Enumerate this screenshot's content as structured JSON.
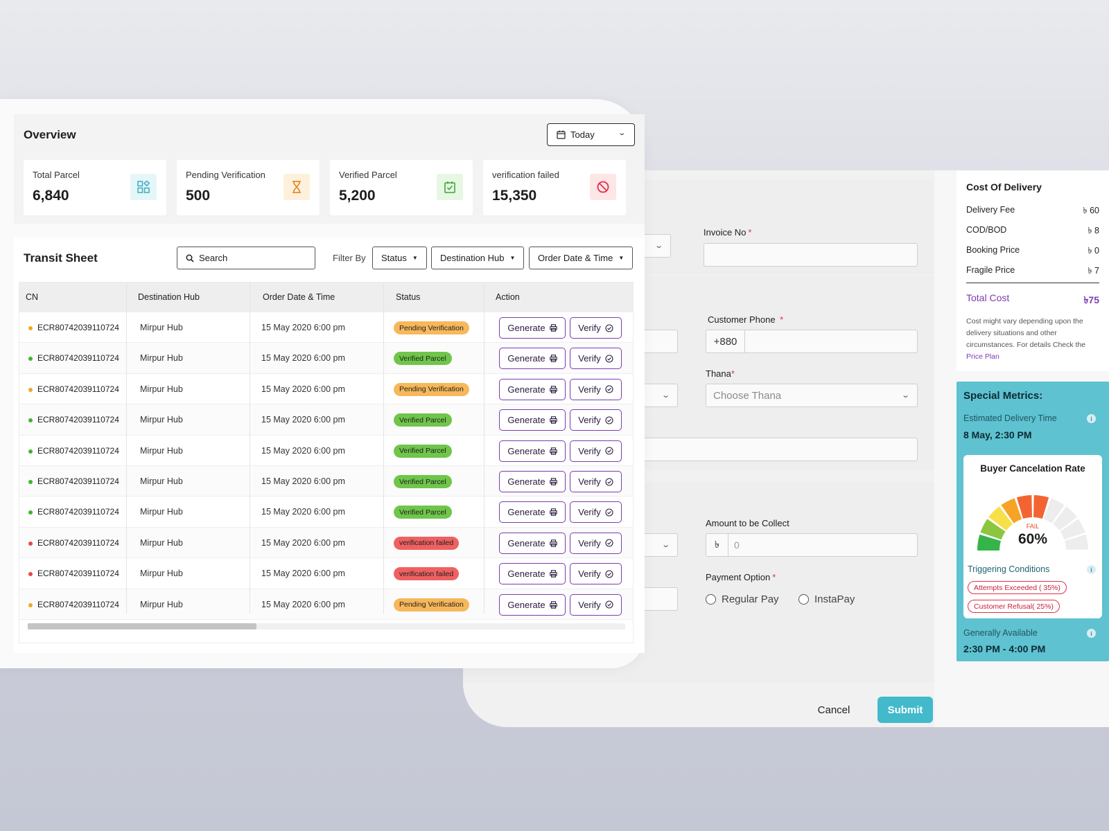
{
  "overview": {
    "title": "Overview",
    "date_filter": "Today",
    "stats": [
      {
        "label": "Total Parcel",
        "value": "6,840",
        "icon": "grid-shapes-icon",
        "color": "#3aaec0",
        "bg": "#e4f6f8"
      },
      {
        "label": "Pending Verification",
        "value": "500",
        "icon": "hourglass-icon",
        "color": "#e5831e",
        "bg": "#fdf1dd"
      },
      {
        "label": "Verified Parcel",
        "value": "5,200",
        "icon": "calendar-check-icon",
        "color": "#3fa53a",
        "bg": "#e7f7e3"
      },
      {
        "label": "verification failed",
        "value": "15,350",
        "icon": "ban-icon",
        "color": "#e0304a",
        "bg": "#fde6e6"
      }
    ]
  },
  "transit": {
    "title": "Transit Sheet",
    "search_placeholder": "Search",
    "filter_label": "Filter By",
    "filters": [
      "Status",
      "Destination Hub",
      "Order Date & Time"
    ],
    "columns": [
      "CN",
      "Destination Hub",
      "Order Date & Time",
      "Status",
      "Action"
    ],
    "generate_label": "Generate",
    "verify_label": "Verify",
    "rows": [
      {
        "cn": "ECR80742039110724",
        "hub": "Mirpur Hub",
        "date": "15 May 2020 6:00 pm",
        "status": "Pending Verification",
        "kind": "pending"
      },
      {
        "cn": "ECR80742039110724",
        "hub": "Mirpur Hub",
        "date": "15 May 2020 6:00 pm",
        "status": "Verified Parcel",
        "kind": "verified"
      },
      {
        "cn": "ECR80742039110724",
        "hub": "Mirpur Hub",
        "date": "15 May 2020 6:00 pm",
        "status": "Pending Verification",
        "kind": "pending"
      },
      {
        "cn": "ECR80742039110724",
        "hub": "Mirpur Hub",
        "date": "15 May 2020 6:00 pm",
        "status": "Verified Parcel",
        "kind": "verified"
      },
      {
        "cn": "ECR80742039110724",
        "hub": "Mirpur Hub",
        "date": "15 May 2020 6:00 pm",
        "status": "Verified Parcel",
        "kind": "verified"
      },
      {
        "cn": "ECR80742039110724",
        "hub": "Mirpur Hub",
        "date": "15 May 2020 6:00 pm",
        "status": "Verified Parcel",
        "kind": "verified"
      },
      {
        "cn": "ECR80742039110724",
        "hub": "Mirpur Hub",
        "date": "15 May 2020 6:00 pm",
        "status": "Verified Parcel",
        "kind": "verified"
      },
      {
        "cn": "ECR80742039110724",
        "hub": "Mirpur Hub",
        "date": "15 May 2020 6:00 pm",
        "status": "verification failed",
        "kind": "failed"
      },
      {
        "cn": "ECR80742039110724",
        "hub": "Mirpur Hub",
        "date": "15 May 2020 6:00 pm",
        "status": "verification failed",
        "kind": "failed"
      },
      {
        "cn": "ECR80742039110724",
        "hub": "Mirpur Hub",
        "date": "15 May 2020 6:00 pm",
        "status": "Pending Verification",
        "kind": "pending"
      }
    ]
  },
  "form": {
    "invoice_label": "Invoice No",
    "customer_phone_label": "Customer Phone",
    "phone_prefix": "+880",
    "thana_label": "Thana",
    "thana_placeholder": "Choose Thana",
    "amount_label": "Amount to be Collect",
    "currency_symbol": "৳",
    "amount_placeholder": "0",
    "payment_label": "Payment Option",
    "payment_options": [
      "Regular Pay",
      "InstaPay"
    ],
    "cancel_label": "Cancel",
    "submit_label": "Submit"
  },
  "cost": {
    "title": "Cost Of Delivery",
    "items": [
      {
        "label": "Delivery Fee",
        "value": "৳ 60"
      },
      {
        "label": "COD/BOD",
        "value": "৳ 8"
      },
      {
        "label": "Booking Price",
        "value": "৳ 0"
      },
      {
        "label": "Fragile Price",
        "value": "৳ 7"
      }
    ],
    "total_label": "Total Cost",
    "total_value": "৳75",
    "note": "Cost might vary depending upon the delivery situations and other circumstances. For details Check the",
    "link": "Price Plan"
  },
  "metrics": {
    "title": "Special Metrics:",
    "est_label": "Estimated Delivery Time",
    "est_value": "8 May, 2:30 PM",
    "gauge_title": "Buyer Cancelation Rate",
    "gauge_status": "FAIL",
    "gauge_value": "60%",
    "gauge_fraction": 0.6,
    "trigger_label": "Triggering Conditions",
    "triggers": [
      "Attempts Exceeded ( 35%)",
      "Customer Refusal( 25%)"
    ],
    "avail_label": "Generally Available",
    "avail_value": "2:30 PM - 4:00 PM"
  }
}
